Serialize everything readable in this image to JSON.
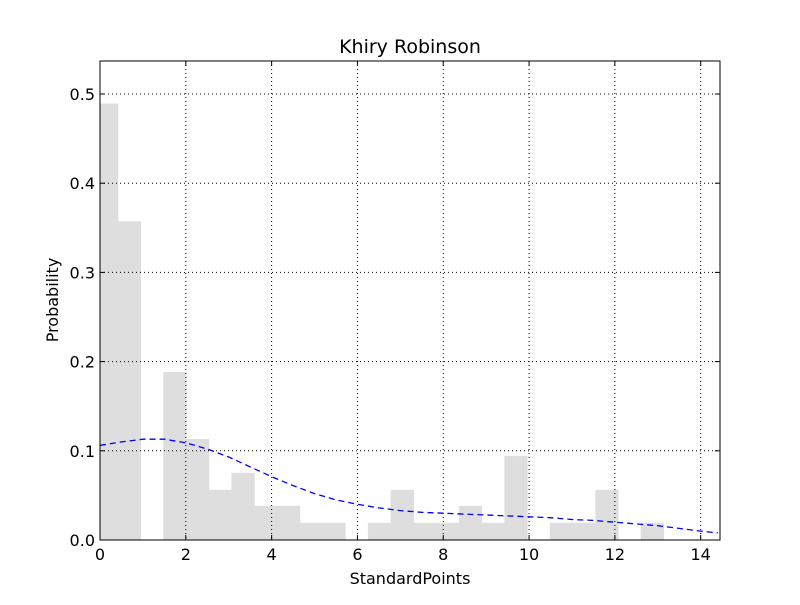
{
  "chart_data": {
    "type": "bar",
    "subtype": "histogram-with-density-curve",
    "title": "Khiry Robinson",
    "xlabel": "StandardPoints",
    "ylabel": "Probability",
    "xlim": [
      0,
      14.45
    ],
    "ylim": [
      0,
      0.537
    ],
    "xticks": [
      0,
      2,
      4,
      6,
      8,
      10,
      12,
      14
    ],
    "xtick_labels": [
      "0",
      "2",
      "4",
      "6",
      "8",
      "10",
      "12",
      "14"
    ],
    "yticks": [
      0.0,
      0.1,
      0.2,
      0.3,
      0.4,
      0.5
    ],
    "ytick_labels": [
      "0.0",
      "0.1",
      "0.2",
      "0.3",
      "0.4",
      "0.5"
    ],
    "grid": true,
    "legend": false,
    "bin_edges": [
      0.0,
      0.42,
      0.95,
      1.48,
      2.01,
      2.54,
      3.07,
      3.6,
      4.13,
      4.66,
      5.19,
      5.72,
      6.25,
      6.78,
      7.31,
      7.84,
      8.37,
      8.9,
      9.43,
      9.96,
      10.49,
      11.02,
      11.55,
      12.08,
      12.61,
      13.14
    ],
    "series": [
      {
        "kind": "histogram",
        "values": [
          0.489,
          0.357,
          0.0,
          0.188,
          0.113,
          0.056,
          0.075,
          0.038,
          0.038,
          0.019,
          0.019,
          0.0,
          0.019,
          0.056,
          0.019,
          0.019,
          0.038,
          0.019,
          0.094,
          0.0,
          0.019,
          0.019,
          0.056,
          0.0,
          0.019
        ]
      },
      {
        "kind": "density",
        "x": [
          0,
          0.5,
          1,
          1.5,
          2,
          2.5,
          3,
          3.5,
          4,
          4.5,
          5,
          5.5,
          6,
          6.5,
          7,
          7.5,
          8,
          8.5,
          9,
          9.5,
          10,
          10.5,
          11,
          11.5,
          12,
          12.5,
          13,
          13.5,
          14,
          14.4
        ],
        "y": [
          0.106,
          0.11,
          0.113,
          0.113,
          0.109,
          0.102,
          0.093,
          0.082,
          0.071,
          0.061,
          0.052,
          0.045,
          0.04,
          0.036,
          0.033,
          0.031,
          0.03,
          0.029,
          0.028,
          0.027,
          0.026,
          0.025,
          0.023,
          0.022,
          0.02,
          0.018,
          0.016,
          0.013,
          0.01,
          0.008
        ]
      }
    ],
    "colors": {
      "bars": "#dedede",
      "density": "#0000ff",
      "grid": "#000000",
      "axes": "#000000"
    }
  }
}
